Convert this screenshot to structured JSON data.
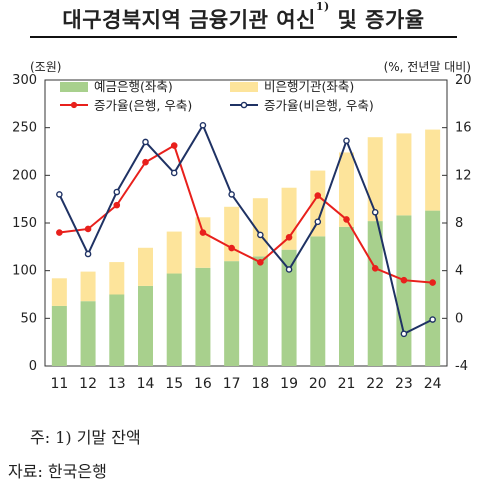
{
  "title": "대구경북지역 금융기관 여신",
  "title_sup": "1)",
  "title_tail": " 및 증가율",
  "left_unit": "(조원)",
  "right_unit": "(%, 전년말 대비)",
  "footnote": "주:  1) 기말 잔액",
  "source": "자료:  한국은행",
  "colors": {
    "deposit_bank": "#a8d08d",
    "non_bank": "#fde49b",
    "bank_growth": "#e8201c",
    "nonbank_growth": "#1f3264"
  },
  "chart_data": {
    "type": "bar",
    "stacked": true,
    "categories": [
      "11",
      "12",
      "13",
      "14",
      "15",
      "16",
      "17",
      "18",
      "19",
      "20",
      "21",
      "22",
      "23",
      "24"
    ],
    "series": [
      {
        "name": "예금은행(좌축)",
        "type": "bar",
        "axis": "left",
        "values": [
          63,
          68,
          75,
          84,
          97,
          103,
          110,
          115,
          122,
          136,
          146,
          152,
          158,
          163
        ]
      },
      {
        "name": "비은행기관(좌축)",
        "type": "bar",
        "axis": "left",
        "values": [
          29,
          31,
          34,
          40,
          44,
          53,
          57,
          61,
          65,
          69,
          78,
          88,
          86,
          85
        ]
      },
      {
        "name": "증가율(은행, 우축)",
        "type": "line",
        "axis": "right",
        "values": [
          7.2,
          7.5,
          9.5,
          13.1,
          14.5,
          7.2,
          5.9,
          4.7,
          6.8,
          10.3,
          8.3,
          4.2,
          3.2,
          3.0
        ]
      },
      {
        "name": "증가율(비은행, 우축)",
        "type": "line",
        "axis": "right",
        "values": [
          10.4,
          5.4,
          10.6,
          14.8,
          12.2,
          16.2,
          10.4,
          7.0,
          4.1,
          8.1,
          14.9,
          8.9,
          -1.3,
          -0.1
        ]
      }
    ],
    "left_axis": {
      "min": 0,
      "max": 300,
      "ticks": [
        "0",
        "50",
        "100",
        "150",
        "200",
        "250",
        "300"
      ]
    },
    "right_axis": {
      "min": -4,
      "max": 20,
      "ticks": [
        "-4",
        "0",
        "4",
        "8",
        "12",
        "16",
        "20"
      ]
    },
    "grid": false,
    "legend_position": "top-left"
  }
}
